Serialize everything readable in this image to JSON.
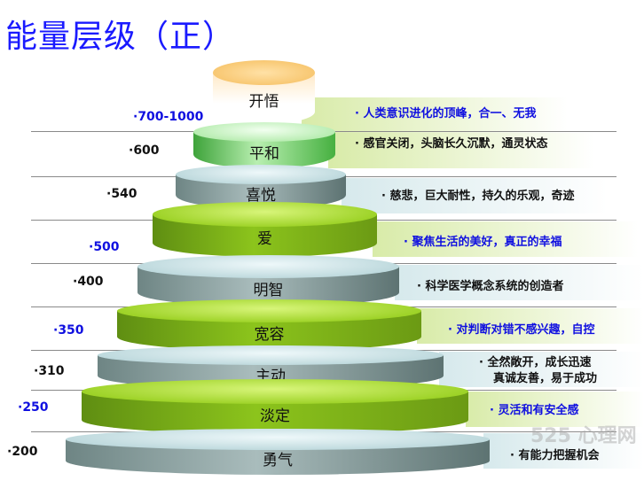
{
  "title": "能量层级（正）",
  "watermark": "525 心理网",
  "colors": {
    "title": "#1a1aff",
    "blue_text": "#1010e0",
    "green_tier": "#8cc41c",
    "grey_tier": "#a9bcbc",
    "top_tier": "#f7c46b"
  },
  "levels": [
    {
      "name": "开悟",
      "value": "·700-1000",
      "desc": "· 人类意识进化的顶峰，合一、无我",
      "color": "blue"
    },
    {
      "name": "平和",
      "value": "·600",
      "desc": "· 感官关闭，头脑长久沉默，通灵状态",
      "color": "black"
    },
    {
      "name": "喜悦",
      "value": "·540",
      "desc": "· 慈悲，巨大耐性，持久的乐观，奇迹",
      "color": "black"
    },
    {
      "name": "爱",
      "value": "·500",
      "desc": "· 聚焦生活的美好，真正的幸福",
      "color": "blue"
    },
    {
      "name": "明智",
      "value": "·400",
      "desc": "· 科学医学概念系统的创造者",
      "color": "black"
    },
    {
      "name": "宽容",
      "value": "·350",
      "desc": "· 对判断对错不感兴趣，自控",
      "color": "blue"
    },
    {
      "name": "主动",
      "value": "·310",
      "desc": "· 全然敞开，成长迅速",
      "desc2": "真诚友善，易于成功",
      "color": "black"
    },
    {
      "name": "淡定",
      "value": "·250",
      "desc": "· 灵活和有安全感",
      "color": "blue"
    },
    {
      "name": "勇气",
      "value": "·200",
      "desc": "· 有能力把握机会",
      "color": "black"
    }
  ]
}
